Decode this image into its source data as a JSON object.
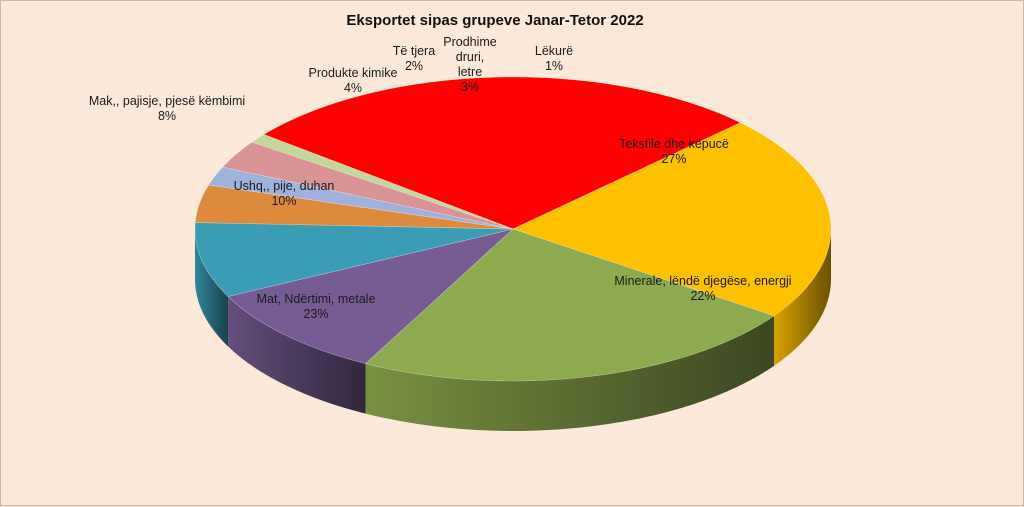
{
  "chart_data": {
    "type": "pie",
    "title": "Eksportet sipas grupeve Janar-Tetor 2022",
    "slices": [
      {
        "label": "Tekstile dhe këpucë",
        "value": 27,
        "pct": "27%",
        "color": "#ff0000"
      },
      {
        "label": "Minerale, lëndë djegëse, energji",
        "value": 22,
        "pct": "22%",
        "color": "#ffc000"
      },
      {
        "label": "Mat, Ndërtimi, metale",
        "value": 23,
        "pct": "23%",
        "color": "#8eaa4e"
      },
      {
        "label": "Ushq,, pije, duhan",
        "value": 10,
        "pct": "10%",
        "color": "#765c92"
      },
      {
        "label": "Mak,, pajisje, pjesë këmbimi",
        "value": 8,
        "pct": "8%",
        "color": "#3b9db5"
      },
      {
        "label": "Produkte kimike",
        "value": 4,
        "pct": "4%",
        "color": "#de8a3d"
      },
      {
        "label": "Të tjera",
        "value": 2,
        "pct": "2%",
        "color": "#9fb2dd"
      },
      {
        "label": "Prodhime druri, letre",
        "value": 3,
        "pct": "3%",
        "color": "#d99595"
      },
      {
        "label": "Lëkurë",
        "value": 1,
        "pct": "1%",
        "color": "#c4d79b"
      }
    ]
  }
}
